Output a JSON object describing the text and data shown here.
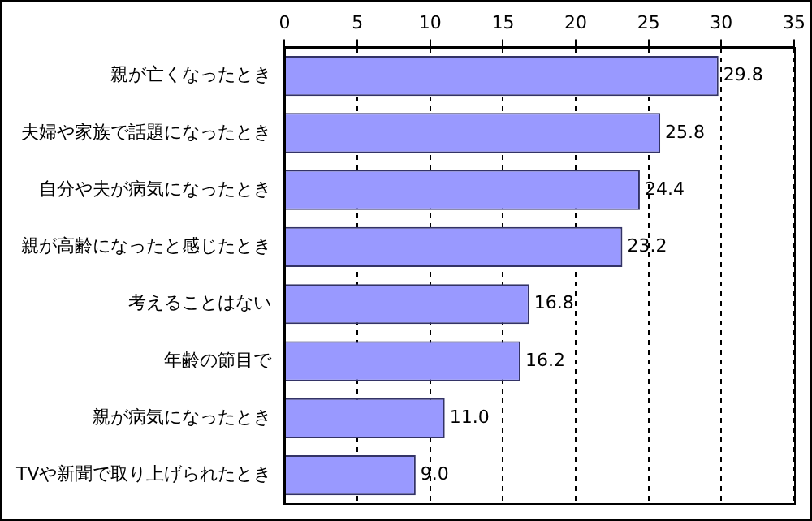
{
  "chart_data": {
    "type": "bar",
    "orientation": "horizontal",
    "categories": [
      "親が亡くなったとき",
      "夫婦や家族で話題になったとき",
      "自分や夫が病気になったとき",
      "親が高齢になったと感じたとき",
      "考えることはない",
      "年齢の節目で",
      "親が病気になったとき",
      "TVや新聞で取り上げられたとき"
    ],
    "values": [
      29.8,
      25.8,
      24.4,
      23.2,
      16.8,
      16.2,
      11.0,
      9.0
    ],
    "value_labels": [
      "29.8",
      "25.8",
      "24.4",
      "23.2",
      "16.8",
      "16.2",
      "11.0",
      "9.0"
    ],
    "color": "#9999ff",
    "xlim": [
      0,
      35
    ],
    "xticks": [
      0,
      5,
      10,
      15,
      20,
      25,
      30,
      35
    ],
    "grid": "x",
    "legend": false
  }
}
